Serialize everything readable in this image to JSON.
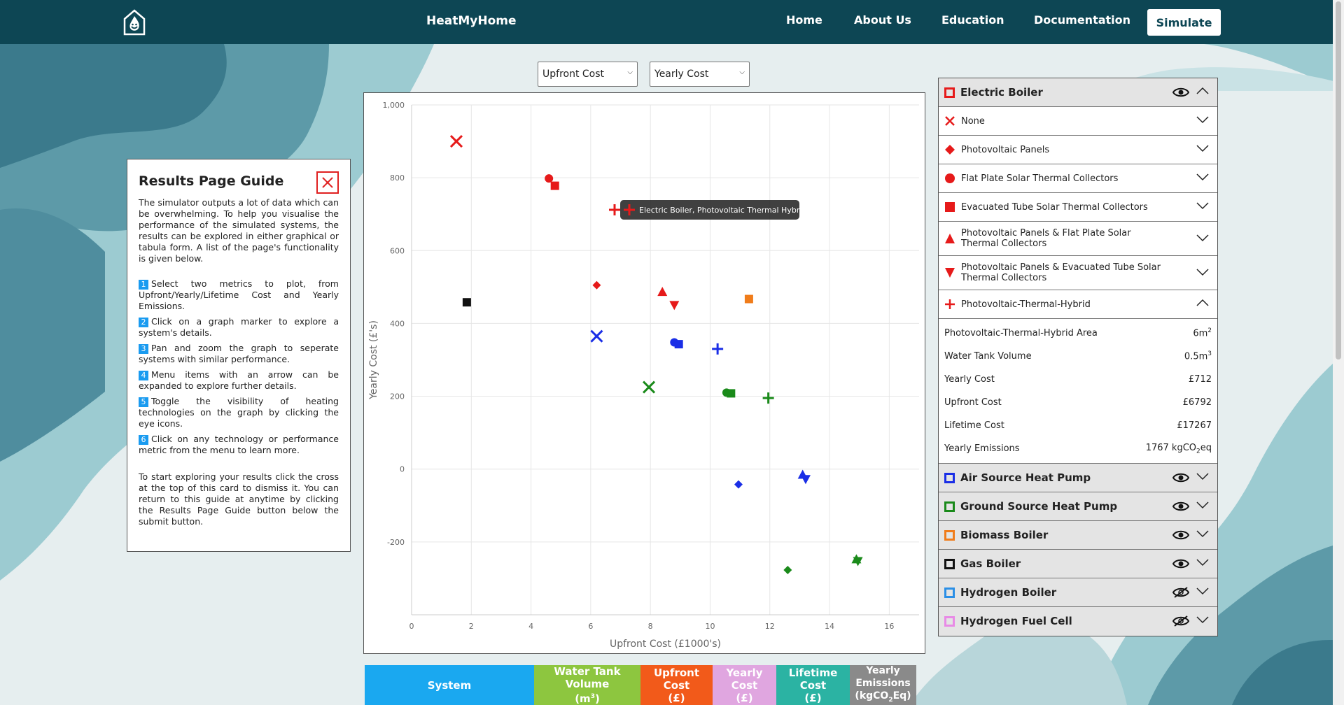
{
  "nav": {
    "brand": "HeatMyHome",
    "links": [
      "Home",
      "About Us",
      "Education",
      "Documentation"
    ],
    "simulate": "Simulate"
  },
  "selects": {
    "x_metric": "Upfront Cost",
    "y_metric": "Yearly Cost"
  },
  "guide": {
    "title": "Results Page Guide",
    "intro": "The simulator outputs a lot of data which can be overwhelming. To help you visualise the performance of the simulated systems, the results can be explored in either graphical or tabula form. A list of the page's functionality is given below.",
    "steps": [
      "Select two metrics to plot, from Upfront/Yearly/Lifetime Cost and Yearly Emissions.",
      "Click on a graph marker to explore a system's details.",
      "Pan and zoom the graph to seperate systems with similar performance.",
      "Menu items with an arrow can be expanded to explore further details.",
      "Toggle the visibility of heating technologies on the graph by clicking the eye icons.",
      "Click on any technology or performance metric from the menu to learn more."
    ],
    "step_numbers": [
      "1",
      "2",
      "3",
      "4",
      "5",
      "6"
    ],
    "outro": "To start exploring your results click the cross at the top of this card to dismiss it. You can return to this guide at anytime by clicking the Results Page Guide button below the submit button."
  },
  "tooltip": "Electric Boiler, Photovoltaic Thermal Hybrid",
  "panel": {
    "electric_boiler": "Electric Boiler",
    "sub_items": [
      "None",
      "Photovoltaic Panels",
      "Flat Plate Solar Thermal Collectors",
      "Evacuated Tube Solar Thermal Collectors",
      "Photovoltaic Panels & Flat Plate Solar Thermal Collectors",
      "Photovoltaic Panels & Evacuated Tube Solar Thermal Collectors",
      "Photovoltaic-Thermal-Hybrid"
    ],
    "details": [
      {
        "label": "Photovoltaic-Thermal-Hybrid Area",
        "value": "6m",
        "sup": "2"
      },
      {
        "label": "Water Tank Volume",
        "value": "0.5m",
        "sup": "3"
      },
      {
        "label": "Yearly Cost",
        "value": "£712"
      },
      {
        "label": "Upfront Cost",
        "value": "£6792"
      },
      {
        "label": "Lifetime Cost",
        "value": "£17267"
      },
      {
        "label": "Yearly Emissions",
        "value": "1767 kgCO",
        "sub": "2",
        "tail": "eq"
      }
    ],
    "systems": [
      {
        "name": "Air Source Heat Pump",
        "color": "#1a2ee6",
        "visible": true
      },
      {
        "name": "Ground Source Heat Pump",
        "color": "#1a8a1a",
        "visible": true
      },
      {
        "name": "Biomass Boiler",
        "color": "#f07c1a",
        "visible": true
      },
      {
        "name": "Gas Boiler",
        "color": "#111111",
        "visible": true
      },
      {
        "name": "Hydrogen Boiler",
        "color": "#2b8fe6",
        "visible": false
      },
      {
        "name": "Hydrogen Fuel Cell",
        "color": "#e88ae6",
        "visible": false
      }
    ]
  },
  "table_headers": [
    "System",
    "Water Tank Volume (m3)",
    "Upfront Cost (£)",
    "Yearly Cost (£)",
    "Lifetime Cost (£)",
    "Yearly Emissions (kgCO2Eq)"
  ],
  "table_header_display": {
    "system": "System",
    "tank": "Water Tank Volume",
    "tank_unit": "(m",
    "tank_sup": "3",
    "tank_close": ")",
    "upfront": "Upfront Cost",
    "upfront_unit": "(£)",
    "yearly": "Yearly Cost",
    "yearly_unit": "(£)",
    "lifetime": "Lifetime Cost",
    "lifetime_unit": "(£)",
    "emissions": "Yearly Emissions",
    "emissions_unit": "(kgCO",
    "emissions_sub": "2",
    "emissions_close": "Eq)"
  },
  "chart_data": {
    "type": "scatter",
    "xlabel": "Upfront Cost (£1000's)",
    "ylabel": "Yearly Cost (£'s)",
    "xlim": [
      0,
      17
    ],
    "ylim": [
      -400,
      1000
    ],
    "xticks": [
      0,
      2,
      4,
      6,
      8,
      10,
      12,
      14,
      16
    ],
    "yticks": [
      -200,
      0,
      200,
      400,
      600,
      800,
      1000
    ],
    "ytick_labels": [
      "-200",
      "0",
      "200",
      "400",
      "600",
      "800",
      "1,000"
    ],
    "grid": true,
    "points": [
      {
        "system": "Electric Boiler",
        "addon": "None",
        "x": 1.5,
        "y": 900,
        "color": "#e61a1a",
        "marker": "x"
      },
      {
        "system": "Electric Boiler",
        "addon": "Flat Plate Solar Thermal Collectors",
        "x": 4.6,
        "y": 798,
        "color": "#e61a1a",
        "marker": "circle"
      },
      {
        "system": "Electric Boiler",
        "addon": "Evacuated Tube Solar Thermal Collectors",
        "x": 4.8,
        "y": 778,
        "color": "#e61a1a",
        "marker": "square"
      },
      {
        "system": "Electric Boiler",
        "addon": "Photovoltaic-Thermal-Hybrid",
        "x": 6.8,
        "y": 712,
        "color": "#e61a1a",
        "marker": "plus"
      },
      {
        "system": "Electric Boiler",
        "addon": "Photovoltaic Panels",
        "x": 6.2,
        "y": 505,
        "color": "#e61a1a",
        "marker": "diamond"
      },
      {
        "system": "Electric Boiler",
        "addon": "Photovoltaic Panels & Flat Plate Solar Thermal Collectors",
        "x": 8.4,
        "y": 487,
        "color": "#e61a1a",
        "marker": "triangle-up"
      },
      {
        "system": "Electric Boiler",
        "addon": "Photovoltaic Panels & Evacuated Tube Solar Thermal Collectors",
        "x": 8.8,
        "y": 450,
        "color": "#e61a1a",
        "marker": "triangle-down"
      },
      {
        "system": "Gas Boiler",
        "x": 1.85,
        "y": 458,
        "color": "#111111",
        "marker": "square"
      },
      {
        "system": "Biomass Boiler",
        "x": 11.3,
        "y": 467,
        "color": "#f07c1a",
        "marker": "square"
      },
      {
        "system": "Air Source Heat Pump",
        "x": 6.2,
        "y": 365,
        "color": "#1a2ee6",
        "marker": "x"
      },
      {
        "system": "Air Source Heat Pump",
        "x": 8.8,
        "y": 348,
        "color": "#1a2ee6",
        "marker": "circle"
      },
      {
        "system": "Air Source Heat Pump",
        "x": 8.95,
        "y": 343,
        "color": "#1a2ee6",
        "marker": "square"
      },
      {
        "system": "Air Source Heat Pump",
        "x": 10.25,
        "y": 330,
        "color": "#1a2ee6",
        "marker": "plus"
      },
      {
        "system": "Air Source Heat Pump",
        "x": 10.95,
        "y": -42,
        "color": "#1a2ee6",
        "marker": "diamond"
      },
      {
        "system": "Air Source Heat Pump",
        "x": 13.1,
        "y": -15,
        "color": "#1a2ee6",
        "marker": "triangle-up"
      },
      {
        "system": "Air Source Heat Pump",
        "x": 13.2,
        "y": -28,
        "color": "#1a2ee6",
        "marker": "triangle-down"
      },
      {
        "system": "Ground Source Heat Pump",
        "x": 7.95,
        "y": 225,
        "color": "#1a8a1a",
        "marker": "x"
      },
      {
        "system": "Ground Source Heat Pump",
        "x": 10.55,
        "y": 210,
        "color": "#1a8a1a",
        "marker": "circle"
      },
      {
        "system": "Ground Source Heat Pump",
        "x": 10.7,
        "y": 208,
        "color": "#1a8a1a",
        "marker": "square"
      },
      {
        "system": "Ground Source Heat Pump",
        "x": 11.95,
        "y": 195,
        "color": "#1a8a1a",
        "marker": "plus"
      },
      {
        "system": "Ground Source Heat Pump",
        "x": 12.6,
        "y": -277,
        "color": "#1a8a1a",
        "marker": "diamond"
      },
      {
        "system": "Ground Source Heat Pump",
        "x": 14.9,
        "y": -247,
        "color": "#1a8a1a",
        "marker": "triangle-up"
      },
      {
        "system": "Ground Source Heat Pump",
        "x": 14.95,
        "y": -253,
        "color": "#1a8a1a",
        "marker": "triangle-down"
      }
    ]
  }
}
